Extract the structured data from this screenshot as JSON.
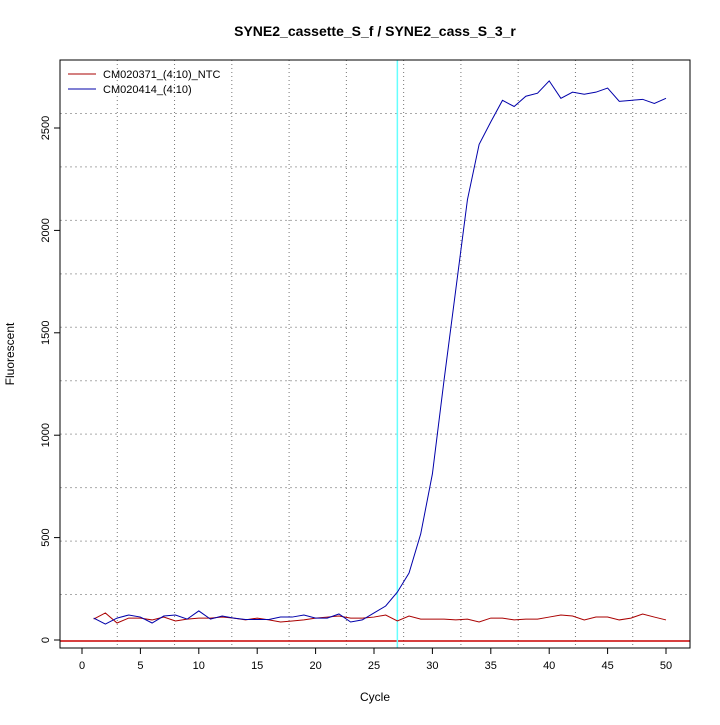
{
  "chart_data": {
    "type": "line",
    "title": "SYNE2_cassette_S_f / SYNE2_cass_S_3_r",
    "xlabel": "Cycle",
    "ylabel": "Fluorescent",
    "xlim": [
      -2,
      52
    ],
    "ylim": [
      -30,
      2870
    ],
    "xticks": [
      0,
      5,
      10,
      15,
      20,
      25,
      30,
      35,
      40,
      45,
      50
    ],
    "yticks": [
      0,
      500,
      1000,
      1500,
      2000,
      2500
    ],
    "grid": true,
    "legend_position": "top-left",
    "threshold_y": 0,
    "threshold_color": "#cc0000",
    "cycle_marker_x": 27,
    "cycle_marker_color": "#66ffff",
    "x": [
      1,
      2,
      3,
      4,
      5,
      6,
      7,
      8,
      9,
      10,
      11,
      12,
      13,
      14,
      15,
      16,
      17,
      18,
      19,
      20,
      21,
      22,
      23,
      24,
      25,
      26,
      27,
      28,
      29,
      30,
      31,
      32,
      33,
      34,
      35,
      36,
      37,
      38,
      39,
      40,
      41,
      42,
      43,
      44,
      45,
      46,
      47,
      48,
      49,
      50
    ],
    "series": [
      {
        "name": "CM020371_(4:10)_NTC",
        "color": "#aa0000",
        "values": [
          102,
          132,
          83,
          107,
          107,
          98,
          112,
          93,
          102,
          107,
          107,
          112,
          107,
          98,
          107,
          98,
          88,
          93,
          98,
          107,
          112,
          117,
          107,
          107,
          112,
          122,
          93,
          117,
          102,
          102,
          102,
          98,
          102,
          88,
          107,
          107,
          98,
          102,
          102,
          112,
          122,
          117,
          98,
          112,
          112,
          98,
          107,
          127,
          112,
          98
        ]
      },
      {
        "name": "CM020414_(4:10)",
        "color": "#0000aa",
        "values": [
          107,
          78,
          107,
          122,
          112,
          83,
          117,
          122,
          102,
          142,
          102,
          117,
          107,
          100,
          100,
          100,
          112,
          112,
          122,
          107,
          107,
          127,
          88,
          98,
          132,
          166,
          234,
          327,
          518,
          811,
          1270,
          1710,
          2150,
          2420,
          2530,
          2635,
          2605,
          2655,
          2670,
          2730,
          2645,
          2675,
          2665,
          2675,
          2695,
          2630,
          2635,
          2640,
          2620,
          2645
        ]
      }
    ]
  }
}
